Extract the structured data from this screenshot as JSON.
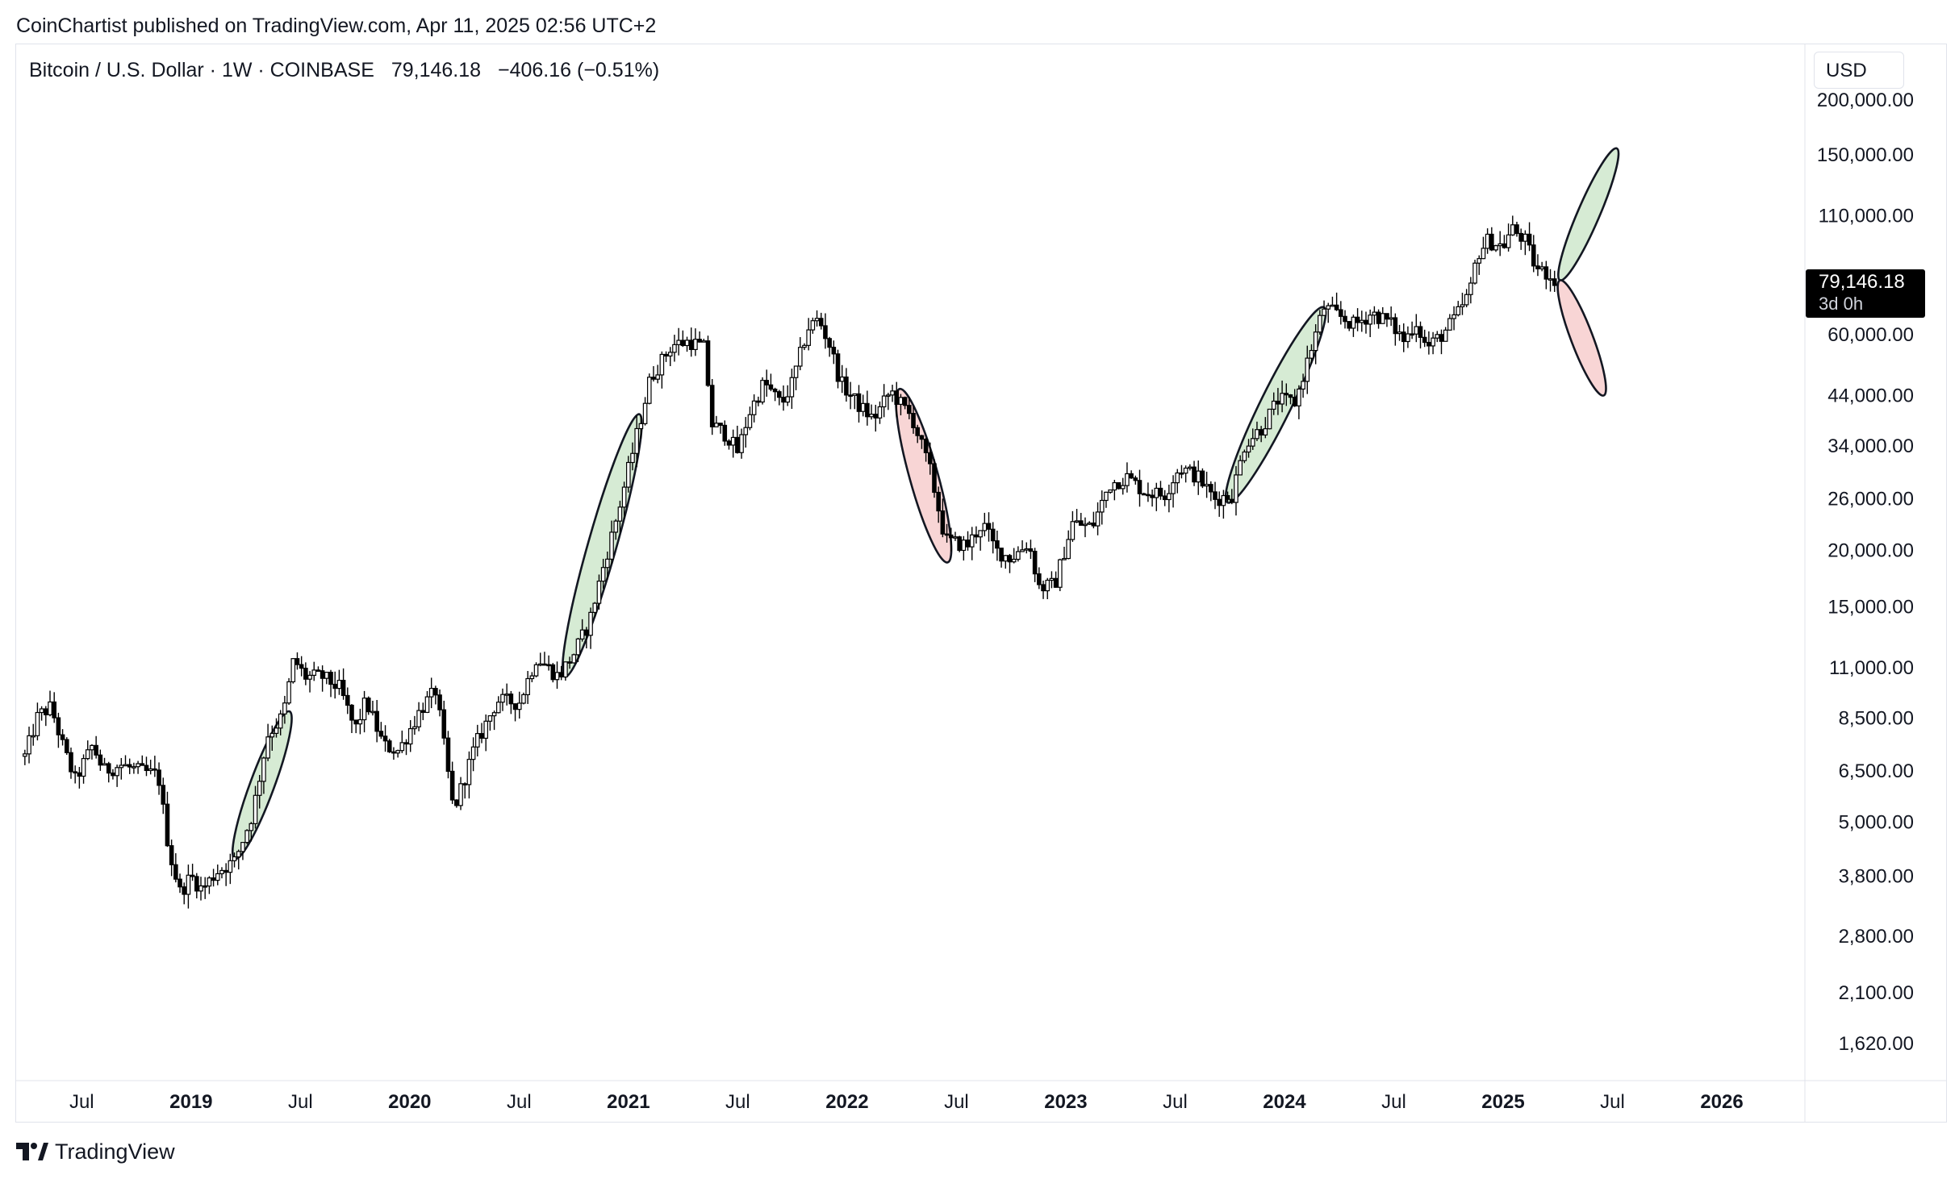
{
  "header": {
    "published": "CoinChartist published on TradingView.com, Apr 11, 2025 02:56 UTC+2"
  },
  "symbol": {
    "title": "Bitcoin / U.S. Dollar · 1W · COINBASE",
    "last": "79,146.18",
    "change": "−406.16 (−0.51%)"
  },
  "price_scale": {
    "currency_label": "USD",
    "last_price_label": "79,146.18",
    "countdown_label": "3d 0h"
  },
  "branding": {
    "logo_text": "TradingView"
  },
  "colors": {
    "bull_fill": "#d4ead2",
    "bear_fill": "#f8d3d3",
    "candle": "#000000",
    "last_price_bg": "#000000"
  },
  "chart_data": {
    "type": "candlestick",
    "timeframe": "1W",
    "scale": "log",
    "y_ticks": [
      {
        "label": "200,000.00",
        "value": 200000
      },
      {
        "label": "150,000.00",
        "value": 150000
      },
      {
        "label": "110,000.00",
        "value": 110000
      },
      {
        "label": "60,000.00",
        "value": 60000
      },
      {
        "label": "44,000.00",
        "value": 44000
      },
      {
        "label": "34,000.00",
        "value": 34000
      },
      {
        "label": "26,000.00",
        "value": 26000
      },
      {
        "label": "20,000.00",
        "value": 20000
      },
      {
        "label": "15,000.00",
        "value": 15000
      },
      {
        "label": "11,000.00",
        "value": 11000
      },
      {
        "label": "8,500.00",
        "value": 8500
      },
      {
        "label": "6,500.00",
        "value": 6500
      },
      {
        "label": "5,000.00",
        "value": 5000
      },
      {
        "label": "3,800.00",
        "value": 3800
      },
      {
        "label": "2,800.00",
        "value": 2800
      },
      {
        "label": "2,100.00",
        "value": 2100
      },
      {
        "label": "1,620.00",
        "value": 1620
      }
    ],
    "x_ticks": [
      {
        "label": "Jul",
        "t": 2018.5,
        "bold": false
      },
      {
        "label": "2019",
        "t": 2019.0,
        "bold": true
      },
      {
        "label": "Jul",
        "t": 2019.5,
        "bold": false
      },
      {
        "label": "2020",
        "t": 2020.0,
        "bold": true
      },
      {
        "label": "Jul",
        "t": 2020.5,
        "bold": false
      },
      {
        "label": "2021",
        "t": 2021.0,
        "bold": true
      },
      {
        "label": "Jul",
        "t": 2021.5,
        "bold": false
      },
      {
        "label": "2022",
        "t": 2022.0,
        "bold": true
      },
      {
        "label": "Jul",
        "t": 2022.5,
        "bold": false
      },
      {
        "label": "2023",
        "t": 2023.0,
        "bold": true
      },
      {
        "label": "Jul",
        "t": 2023.5,
        "bold": false
      },
      {
        "label": "2024",
        "t": 2024.0,
        "bold": true
      },
      {
        "label": "Jul",
        "t": 2024.5,
        "bold": false
      },
      {
        "label": "2025",
        "t": 2025.0,
        "bold": true
      },
      {
        "label": "Jul",
        "t": 2025.5,
        "bold": false
      },
      {
        "label": "2026",
        "t": 2026.0,
        "bold": true
      }
    ],
    "price_path": [
      [
        2018.24,
        7000
      ],
      [
        2018.3,
        8600
      ],
      [
        2018.36,
        9000
      ],
      [
        2018.42,
        7200
      ],
      [
        2018.47,
        6200
      ],
      [
        2018.55,
        7400
      ],
      [
        2018.6,
        6500
      ],
      [
        2018.68,
        6700
      ],
      [
        2018.76,
        6500
      ],
      [
        2018.85,
        6350
      ],
      [
        2018.9,
        4300
      ],
      [
        2018.95,
        3500
      ],
      [
        2019.0,
        3800
      ],
      [
        2019.05,
        3550
      ],
      [
        2019.12,
        3900
      ],
      [
        2019.2,
        4100
      ],
      [
        2019.28,
        5200
      ],
      [
        2019.35,
        7800
      ],
      [
        2019.42,
        8600
      ],
      [
        2019.47,
        11500
      ],
      [
        2019.52,
        10500
      ],
      [
        2019.6,
        10500
      ],
      [
        2019.68,
        9900
      ],
      [
        2019.75,
        8000
      ],
      [
        2019.8,
        9300
      ],
      [
        2019.88,
        7400
      ],
      [
        2019.95,
        7200
      ],
      [
        2020.05,
        8900
      ],
      [
        2020.12,
        9800
      ],
      [
        2020.2,
        5300
      ],
      [
        2020.3,
        7400
      ],
      [
        2020.4,
        9300
      ],
      [
        2020.5,
        9200
      ],
      [
        2020.58,
        11600
      ],
      [
        2020.68,
        10500
      ],
      [
        2020.75,
        11800
      ],
      [
        2020.82,
        13800
      ],
      [
        2020.88,
        18000
      ],
      [
        2020.95,
        24000
      ],
      [
        2021.05,
        38000
      ],
      [
        2021.1,
        48000
      ],
      [
        2021.2,
        57000
      ],
      [
        2021.28,
        58000
      ],
      [
        2021.35,
        56000
      ],
      [
        2021.38,
        38000
      ],
      [
        2021.45,
        36000
      ],
      [
        2021.5,
        33000
      ],
      [
        2021.55,
        40000
      ],
      [
        2021.62,
        47000
      ],
      [
        2021.7,
        42000
      ],
      [
        2021.75,
        47000
      ],
      [
        2021.82,
        62000
      ],
      [
        2021.87,
        65000
      ],
      [
        2021.92,
        57000
      ],
      [
        2021.97,
        47000
      ],
      [
        2022.05,
        42000
      ],
      [
        2022.12,
        39000
      ],
      [
        2022.2,
        45000
      ],
      [
        2022.3,
        39000
      ],
      [
        2022.38,
        30000
      ],
      [
        2022.45,
        21000
      ],
      [
        2022.55,
        20500
      ],
      [
        2022.62,
        23000
      ],
      [
        2022.68,
        20000
      ],
      [
        2022.75,
        19200
      ],
      [
        2022.83,
        20800
      ],
      [
        2022.88,
        16500
      ],
      [
        2022.95,
        16800
      ],
      [
        2023.03,
        23000
      ],
      [
        2023.12,
        22500
      ],
      [
        2023.2,
        28000
      ],
      [
        2023.28,
        29000
      ],
      [
        2023.36,
        27000
      ],
      [
        2023.45,
        26500
      ],
      [
        2023.52,
        30500
      ],
      [
        2023.6,
        29200
      ],
      [
        2023.68,
        26000
      ],
      [
        2023.76,
        26500
      ],
      [
        2023.82,
        34500
      ],
      [
        2023.9,
        37500
      ],
      [
        2023.97,
        43000
      ],
      [
        2024.05,
        42500
      ],
      [
        2024.1,
        51500
      ],
      [
        2024.18,
        69000
      ],
      [
        2024.25,
        66000
      ],
      [
        2024.32,
        63000
      ],
      [
        2024.4,
        67000
      ],
      [
        2024.48,
        64000
      ],
      [
        2024.55,
        58000
      ],
      [
        2024.6,
        64500
      ],
      [
        2024.65,
        56000
      ],
      [
        2024.72,
        60000
      ],
      [
        2024.78,
        65000
      ],
      [
        2024.85,
        75000
      ],
      [
        2024.88,
        90000
      ],
      [
        2024.93,
        97000
      ],
      [
        2025.0,
        94000
      ],
      [
        2025.04,
        103000
      ],
      [
        2025.1,
        97000
      ],
      [
        2025.15,
        84000
      ],
      [
        2025.2,
        82000
      ],
      [
        2025.25,
        79146
      ]
    ],
    "projection_ellipses": [
      {
        "kind": "bull",
        "from": [
          2019.2,
          4150
        ],
        "to": [
          2019.45,
          8800
        ],
        "width_t": 0.11
      },
      {
        "kind": "bull",
        "from": [
          2020.71,
          10500
        ],
        "to": [
          2021.05,
          40000
        ],
        "width_t": 0.13
      },
      {
        "kind": "bear",
        "from": [
          2022.24,
          45500
        ],
        "to": [
          2022.46,
          18800
        ],
        "width_t": 0.13
      },
      {
        "kind": "bull",
        "from": [
          2023.74,
          25500
        ],
        "to": [
          2024.18,
          69000
        ],
        "width_t": 0.14
      },
      {
        "kind": "bull",
        "from": [
          2025.26,
          79146
        ],
        "to": [
          2025.52,
          155000
        ],
        "width_t": 0.1
      },
      {
        "kind": "bear",
        "from": [
          2025.26,
          79146
        ],
        "to": [
          2025.46,
          44000
        ],
        "width_t": 0.1
      }
    ],
    "last_price": 79146.18
  }
}
